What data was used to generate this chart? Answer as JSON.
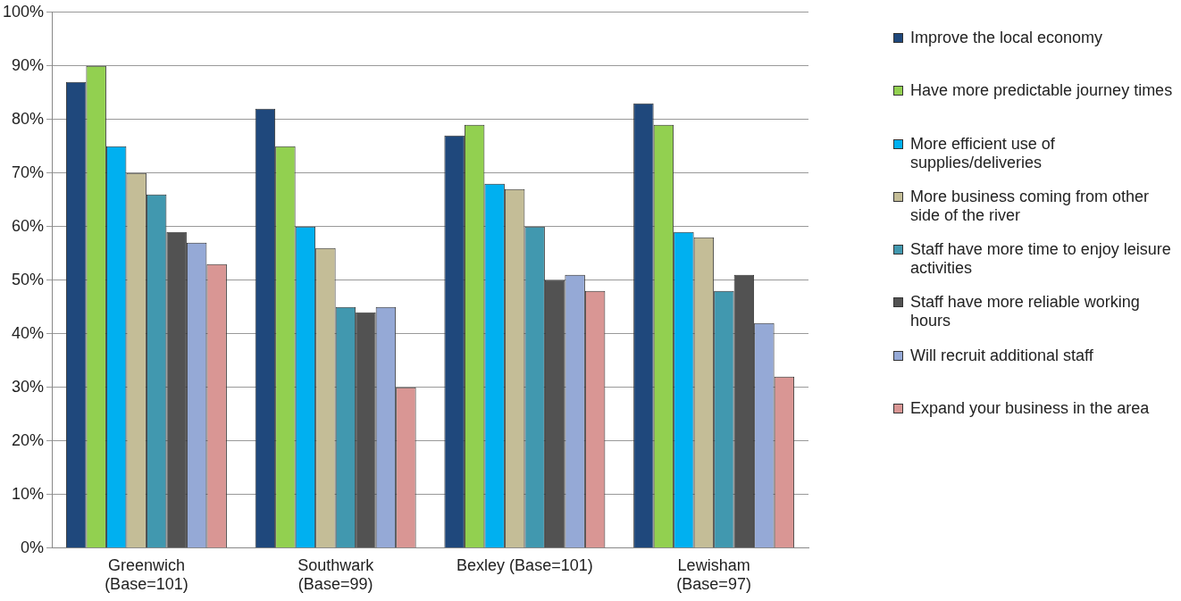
{
  "chart_data": {
    "type": "bar",
    "categories": [
      "Greenwich\n(Base=101)",
      "Southwark\n(Base=99)",
      "Bexley (Base=101)",
      "Lewisham\n(Base=97)"
    ],
    "series": [
      {
        "name": "Improve the local economy",
        "color": "#1f487c",
        "values": [
          87,
          82,
          77,
          83
        ]
      },
      {
        "name": "Have more predictable journey times",
        "color": "#92d050",
        "values": [
          90,
          75,
          79,
          79
        ]
      },
      {
        "name": "More efficient use of supplies/deliveries",
        "color": "#00b0f0",
        "values": [
          75,
          60,
          68,
          59
        ]
      },
      {
        "name": "More business coming from other side of the river",
        "color": "#c4bd97",
        "values": [
          70,
          56,
          67,
          58
        ]
      },
      {
        "name": "Staff have more time to enjoy leisure activities",
        "color": "#4198af",
        "values": [
          66,
          45,
          60,
          48
        ]
      },
      {
        "name": "Staff have more reliable working hours",
        "color": "#525252",
        "values": [
          59,
          44,
          50,
          51
        ]
      },
      {
        "name": "Will recruit additional staff",
        "color": "#95a9d6",
        "values": [
          57,
          45,
          51,
          42
        ]
      },
      {
        "name": "Expand your business in the area",
        "color": "#d99694",
        "values": [
          53,
          30,
          48,
          32
        ]
      }
    ],
    "ylim": [
      0,
      100
    ],
    "yticks": [
      {
        "value": 0,
        "label": "0%"
      },
      {
        "value": 10,
        "label": "10%"
      },
      {
        "value": 20,
        "label": "20%"
      },
      {
        "value": 30,
        "label": "30%"
      },
      {
        "value": 40,
        "label": "40%"
      },
      {
        "value": 50,
        "label": "50%"
      },
      {
        "value": 60,
        "label": "60%"
      },
      {
        "value": 70,
        "label": "70%"
      },
      {
        "value": 80,
        "label": "80%"
      },
      {
        "value": 90,
        "label": "90%"
      },
      {
        "value": 100,
        "label": "100%"
      }
    ],
    "grid": "y",
    "legend": "right"
  }
}
